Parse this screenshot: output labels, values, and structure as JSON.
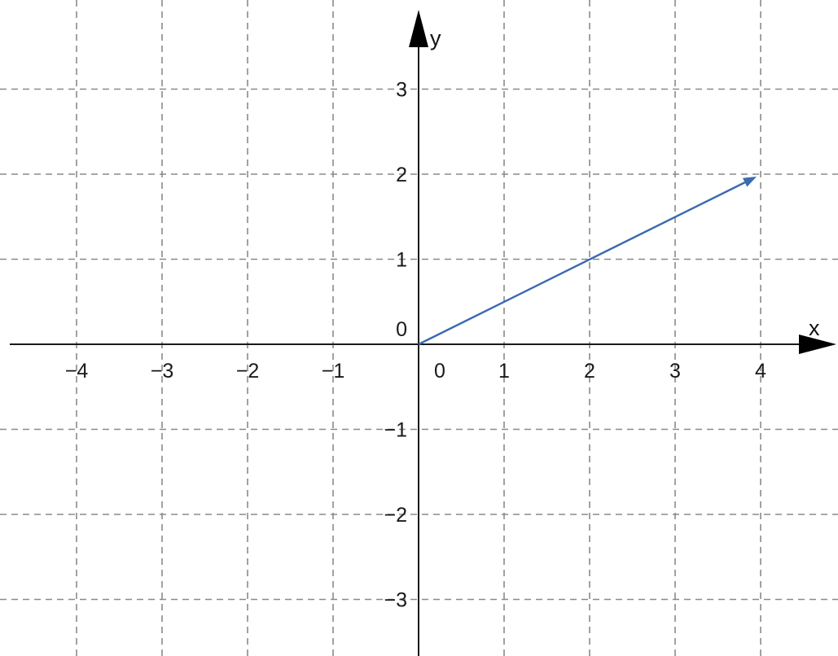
{
  "chart_data": {
    "type": "line",
    "title": "",
    "xlabel": "x",
    "ylabel": "y",
    "xlim": [
      -4.8,
      4.9
    ],
    "ylim": [
      -3.6,
      3.8
    ],
    "grid": true,
    "x_ticks": [
      -4,
      -3,
      -2,
      -1,
      0,
      1,
      2,
      3,
      4
    ],
    "x_tick_labels": [
      "−4",
      "−3",
      "−2",
      "−1",
      "0",
      "1",
      "2",
      "3",
      "4"
    ],
    "y_ticks": [
      3,
      2,
      1,
      0,
      -1,
      -2,
      -3
    ],
    "y_tick_labels": [
      "3",
      "2",
      "1",
      "0",
      "−1",
      "−2",
      "−3"
    ],
    "series": [
      {
        "type": "vector",
        "from": [
          0,
          0
        ],
        "to": [
          4,
          2
        ],
        "color": "#3a6ab0"
      }
    ]
  },
  "colors": {
    "axis": "#1a1a1a",
    "grid": "#8a8a8a",
    "vector": "#3a6ab0"
  }
}
